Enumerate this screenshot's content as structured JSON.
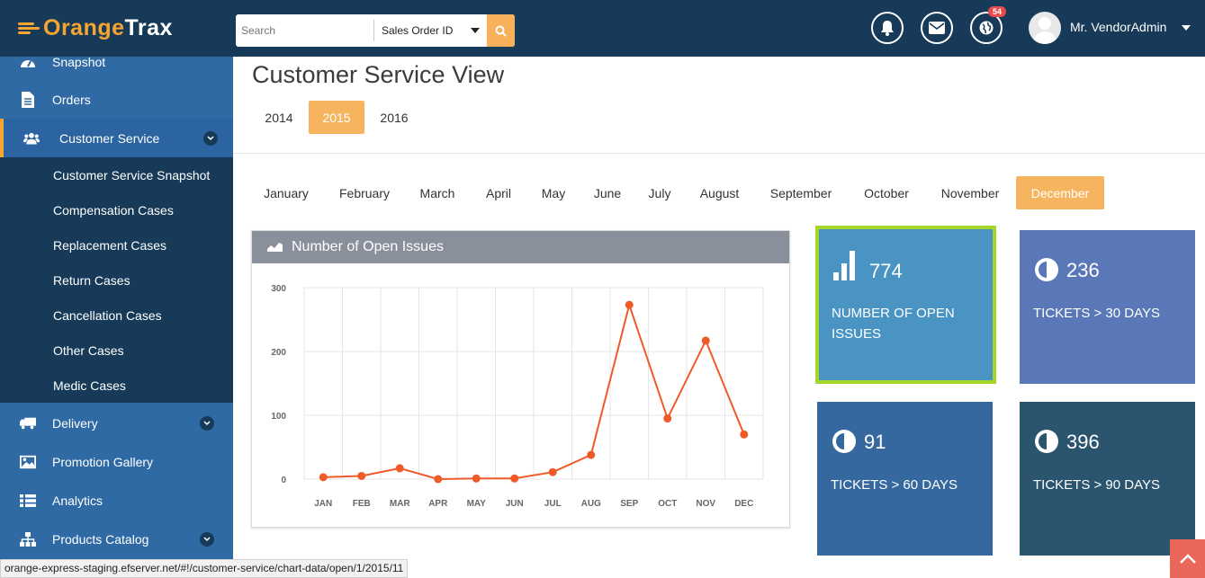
{
  "brand": {
    "logo_orange": "Orange",
    "logo_white": "Trax"
  },
  "header": {
    "search": {
      "placeholder": "Search",
      "value": ""
    },
    "search_type": "Sales Order ID",
    "notifications_badge": "54",
    "user_name": "Mr. VendorAdmin"
  },
  "sidebar": {
    "items": [
      {
        "label": "Snapshot",
        "icon": "dashboard-icon"
      },
      {
        "label": "Orders",
        "icon": "document-icon"
      },
      {
        "label": "Customer Service",
        "icon": "users-icon",
        "active": true,
        "expandable": true
      },
      {
        "label": "Delivery",
        "icon": "truck-icon",
        "expandable": true
      },
      {
        "label": "Promotion Gallery",
        "icon": "image-icon"
      },
      {
        "label": "Analytics",
        "icon": "list-icon"
      },
      {
        "label": "Products Catalog",
        "icon": "sitemap-icon",
        "expandable": true
      }
    ],
    "subitems": [
      "Customer Service Snapshot",
      "Compensation Cases",
      "Replacement Cases",
      "Return Cases",
      "Cancellation Cases",
      "Other Cases",
      "Medic Cases"
    ]
  },
  "main": {
    "title": "Customer Service View",
    "years": [
      "2014",
      "2015",
      "2016"
    ],
    "selected_year": "2015",
    "months": [
      "January",
      "February",
      "March",
      "April",
      "May",
      "June",
      "July",
      "August",
      "September",
      "October",
      "November",
      "December"
    ],
    "selected_month": "December"
  },
  "chart_panel": {
    "title": "Number of Open Issues"
  },
  "chart_data": {
    "type": "line",
    "categories": [
      "JAN",
      "FEB",
      "MAR",
      "APR",
      "MAY",
      "JUN",
      "JUL",
      "AUG",
      "SEP",
      "OCT",
      "NOV",
      "DEC"
    ],
    "series": [
      {
        "values": [
          3,
          5,
          17,
          0,
          1,
          1,
          11,
          38,
          273,
          95,
          217,
          70
        ]
      }
    ],
    "yticks": [
      "300",
      "200",
      "100",
      "0"
    ],
    "ylim": [
      0,
      300
    ],
    "grid": true,
    "colors": {
      "line": "#f05a28"
    }
  },
  "tiles": [
    {
      "value": "774",
      "label": "NUMBER OF OPEN ISSUES",
      "icon": "bar-chart-icon",
      "color": "#4a94c4"
    },
    {
      "value": "236",
      "label": "TICKETS > 30 DAYS",
      "icon": "half-circle-icon",
      "color": "#5a78b8"
    },
    {
      "value": "91",
      "label": "TICKETS > 60 DAYS",
      "icon": "half-circle-icon",
      "color": "#34689e"
    },
    {
      "value": "396",
      "label": "TICKETS > 90 DAYS",
      "icon": "half-circle-icon",
      "color": "#2b546e"
    }
  ],
  "status_url": "orange-express-staging.efserver.net/#!/customer-service/chart-data/open/1/2015/11",
  "colors": {
    "accent": "#f7b45e",
    "topbar": "#163a57",
    "sidebar": "#2f6aa5",
    "tile_highlight": "#a6d62a"
  }
}
